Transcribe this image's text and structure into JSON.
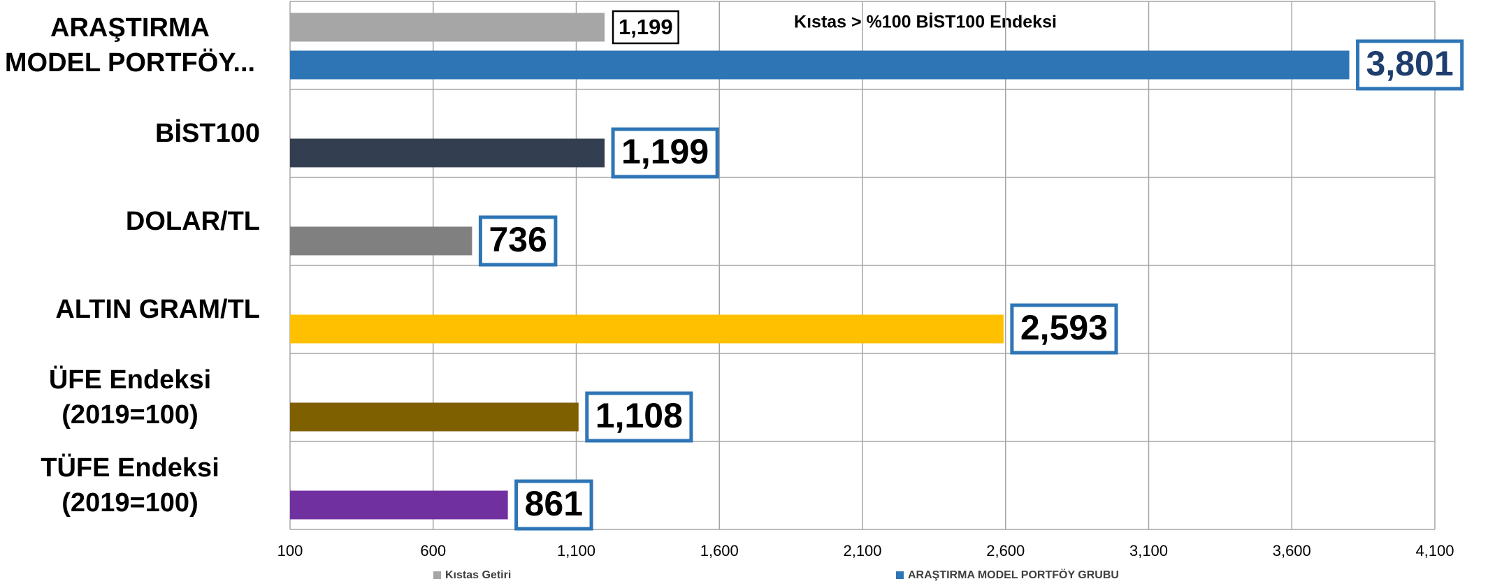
{
  "chart_data": {
    "type": "bar",
    "orientation": "horizontal",
    "annotation": "Kıstas > %100 BİST100 Endeksi",
    "categories": [
      "ARAŞTIRMA MODEL PORTFÖY...",
      "BİST100",
      "DOLAR/TL",
      "ALTIN GRAM/TL",
      "ÜFE Endeksi (2019=100)",
      "TÜFE Endeksi (2019=100)"
    ],
    "series": [
      {
        "name": "Kıstas Getiri",
        "color": "#a6a6a6",
        "values": [
          1199,
          null,
          null,
          null,
          null,
          null
        ],
        "value_labels": [
          "1,199",
          null,
          null,
          null,
          null,
          null
        ]
      },
      {
        "name": "ARAŞTIRMA MODEL PORTFÖY GRUBU",
        "color": "#2e75b6",
        "colors": [
          "#2e75b6",
          "#333f50",
          "#808080",
          "#ffc000",
          "#7f6000",
          "#7030a0"
        ],
        "values": [
          3801,
          1199,
          736,
          2593,
          1108,
          861
        ],
        "value_labels": [
          "3,801",
          "1,199",
          "736",
          "2,593",
          "1,108",
          "861"
        ]
      }
    ],
    "xlim": [
      100,
      4100
    ],
    "xticks": [
      100,
      600,
      {
        "value": 1100,
        "label": "1,100"
      },
      {
        "value": 1600,
        "label": "1,600"
      },
      {
        "value": 2100,
        "label": "2,100"
      },
      {
        "value": 2600,
        "label": "2,600"
      },
      {
        "value": 3100,
        "label": "3,100"
      },
      {
        "value": 3600,
        "label": "3,600"
      },
      {
        "value": 4100,
        "label": "4,100"
      }
    ],
    "grid": true,
    "legend": "bottom"
  }
}
